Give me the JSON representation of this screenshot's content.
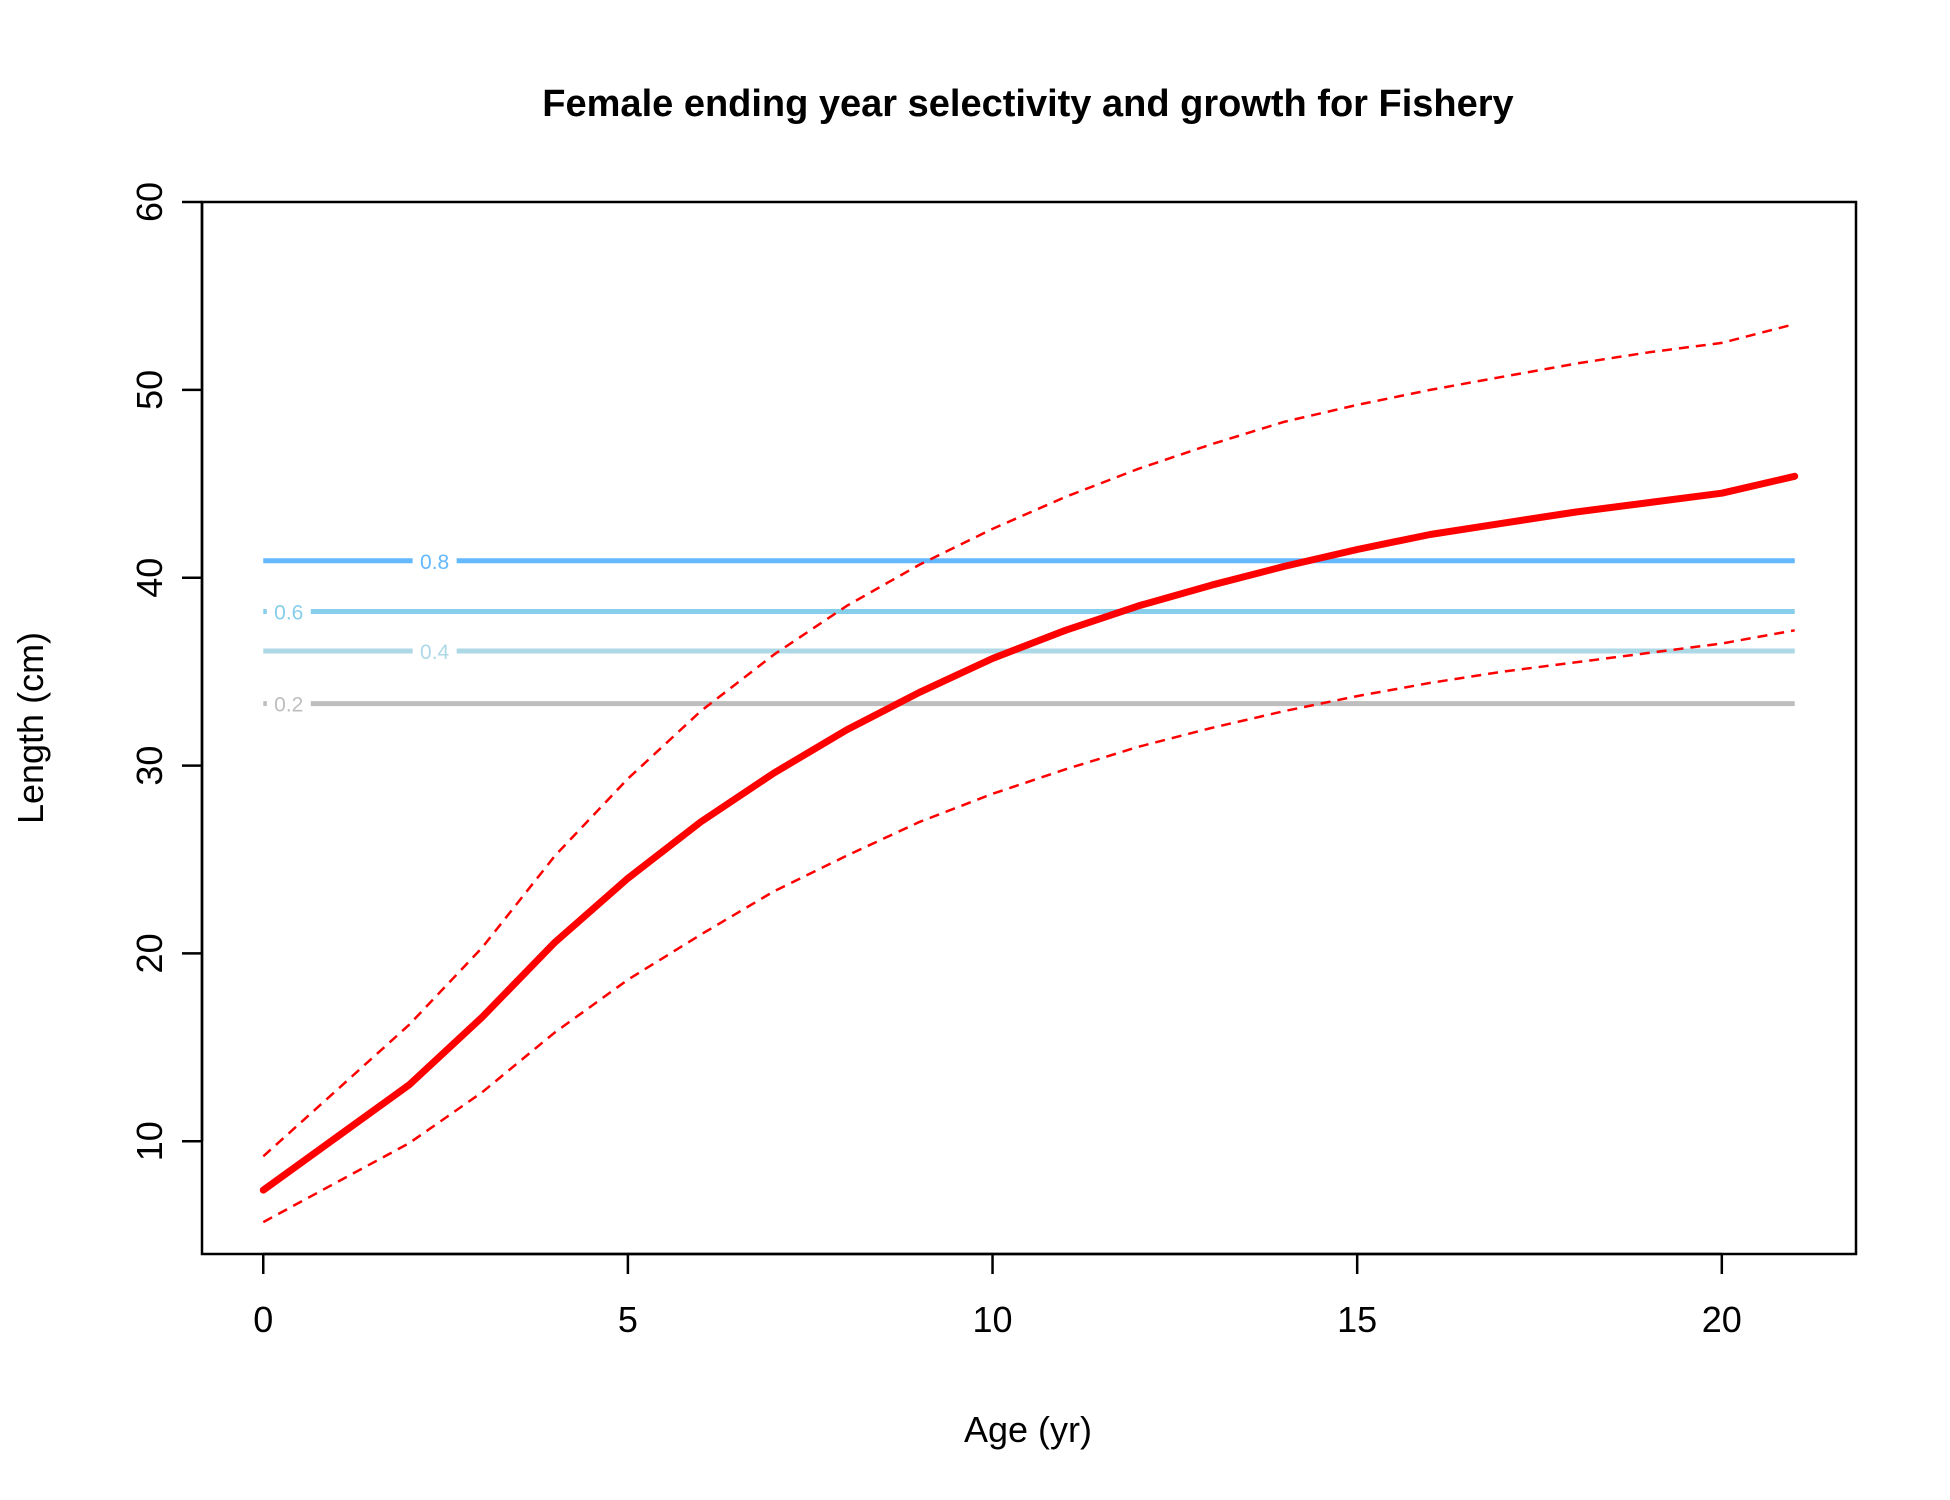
{
  "chart_data": {
    "type": "line",
    "title": "Female ending year selectivity and growth for Fishery",
    "xlabel": "Age (yr)",
    "ylabel": "Length (cm)",
    "xlim": [
      -0.84,
      21.84
    ],
    "ylim": [
      4,
      60
    ],
    "xticks": [
      0,
      5,
      10,
      15,
      20
    ],
    "yticks": [
      10,
      20,
      30,
      40,
      50,
      60
    ],
    "grid": false,
    "series": [
      {
        "style": "solid",
        "color": "#ff0000",
        "x": [
          0,
          1,
          2,
          3,
          4,
          5,
          6,
          7,
          8,
          9,
          10,
          11,
          12,
          13,
          14,
          15,
          16,
          17,
          18,
          19,
          20,
          21
        ],
        "y": [
          7.4,
          10.2,
          13.0,
          16.6,
          20.6,
          24.0,
          27.0,
          29.6,
          31.9,
          33.9,
          35.7,
          37.2,
          38.5,
          39.6,
          40.6,
          41.5,
          42.3,
          42.9,
          43.5,
          44.0,
          44.5,
          45.4
        ]
      },
      {
        "style": "dashed",
        "color": "#ff0000",
        "x": [
          0,
          1,
          2,
          3,
          4,
          5,
          6,
          7,
          8,
          9,
          10,
          11,
          12,
          13,
          14,
          15,
          16,
          17,
          18,
          19,
          20,
          21
        ],
        "y": [
          9.2,
          12.7,
          16.2,
          20.3,
          25.2,
          29.3,
          32.9,
          35.9,
          38.5,
          40.7,
          42.6,
          44.3,
          45.8,
          47.1,
          48.3,
          49.2,
          50.0,
          50.7,
          51.4,
          52.0,
          52.5,
          53.5
        ]
      },
      {
        "style": "dashed",
        "color": "#ff0000",
        "x": [
          0,
          1,
          2,
          3,
          4,
          5,
          6,
          7,
          8,
          9,
          10,
          11,
          12,
          13,
          14,
          15,
          16,
          17,
          18,
          19,
          20,
          21
        ],
        "y": [
          5.7,
          7.8,
          9.9,
          12.6,
          15.8,
          18.6,
          21.0,
          23.3,
          25.2,
          27.0,
          28.5,
          29.8,
          31.0,
          32.0,
          32.9,
          33.7,
          34.4,
          35.0,
          35.5,
          36.0,
          36.5,
          37.2
        ]
      }
    ],
    "contours": [
      {
        "level": "0.8",
        "y": 40.9,
        "color": "#63b8ff",
        "label_x": 2.35
      },
      {
        "level": "0.6",
        "y": 38.2,
        "color": "#87ceeb",
        "label_x": 0.35
      },
      {
        "level": "0.4",
        "y": 36.1,
        "color": "#add8e6",
        "label_x": 2.35
      },
      {
        "level": "0.2",
        "y": 33.3,
        "color": "#bebebe",
        "label_x": 0.35
      }
    ],
    "contour_xrange": [
      0,
      21
    ]
  }
}
